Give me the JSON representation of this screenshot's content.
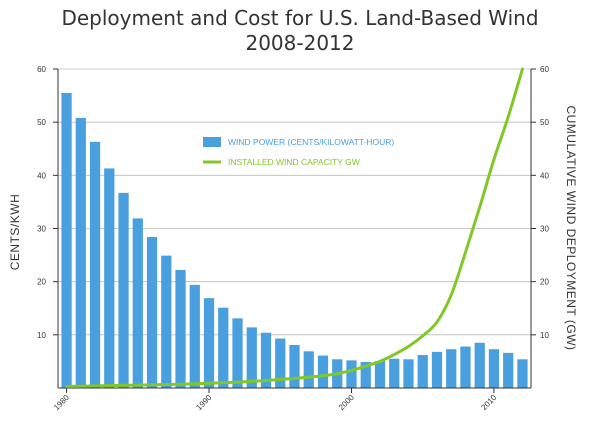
{
  "chart_data": {
    "type": "bar+line",
    "title_lines": [
      "Deployment and Cost for U.S. Land-Based Wind",
      "2008-2012"
    ],
    "xlabel": "",
    "ylabel_left": "CENTS/KWH",
    "ylabel_right": "CUMULATIVE WIND DEPLOYMENT (GW)",
    "ylim_left": [
      0,
      60
    ],
    "ylim_right": [
      0,
      60
    ],
    "yticks_left": [
      "10",
      "20",
      "30",
      "40",
      "50",
      "60"
    ],
    "yticks_right": [
      "10",
      "20",
      "30",
      "40",
      "50",
      "60"
    ],
    "xlim": [
      1979.4,
      2012.6
    ],
    "xtick_labels": [
      "1980",
      "1990",
      "2000",
      "2010"
    ],
    "grid": "horizontal",
    "legend_position": "center-top",
    "colors": {
      "bar": "#4aa0df",
      "line": "#80c828",
      "grid": "#bbbbbb",
      "axis": "#333333"
    },
    "series": [
      {
        "name": "WIND POWER (CENTS/KILOWATT-HOUR)",
        "type": "bar",
        "axis": "left",
        "x": [
          1980,
          1981,
          1982,
          1983,
          1984,
          1985,
          1986,
          1987,
          1988,
          1989,
          1990,
          1991,
          1992,
          1993,
          1994,
          1995,
          1996,
          1997,
          1998,
          1999,
          2000,
          2001,
          2002,
          2003,
          2004,
          2005,
          2006,
          2007,
          2008,
          2009,
          2010,
          2011,
          2012
        ],
        "values": [
          55.5,
          50.8,
          46.3,
          41.3,
          36.7,
          31.9,
          28.4,
          24.9,
          22.2,
          19.4,
          16.9,
          15.1,
          13.1,
          11.4,
          10.4,
          9.3,
          8.1,
          6.9,
          6.1,
          5.4,
          5.2,
          4.9,
          5.1,
          5.5,
          5.4,
          6.2,
          6.8,
          7.3,
          7.8,
          8.5,
          7.3,
          6.6,
          5.4
        ]
      },
      {
        "name": "INSTALLED WIND CAPACITY GW",
        "type": "line",
        "axis": "right",
        "x": [
          1980,
          1982,
          1984,
          1986,
          1988,
          1990,
          1992,
          1994,
          1996,
          1998,
          1999,
          2000,
          2001,
          2002,
          2003,
          2004,
          2005,
          2006,
          2007,
          2008,
          2009,
          2010,
          2011,
          2012
        ],
        "values": [
          0.3,
          0.4,
          0.5,
          0.6,
          0.7,
          0.9,
          1.1,
          1.4,
          1.8,
          2.3,
          2.7,
          3.3,
          4.1,
          5.0,
          6.3,
          7.8,
          9.8,
          12.4,
          17.5,
          25.5,
          34.0,
          43.0,
          51.0,
          60.0
        ]
      }
    ]
  }
}
